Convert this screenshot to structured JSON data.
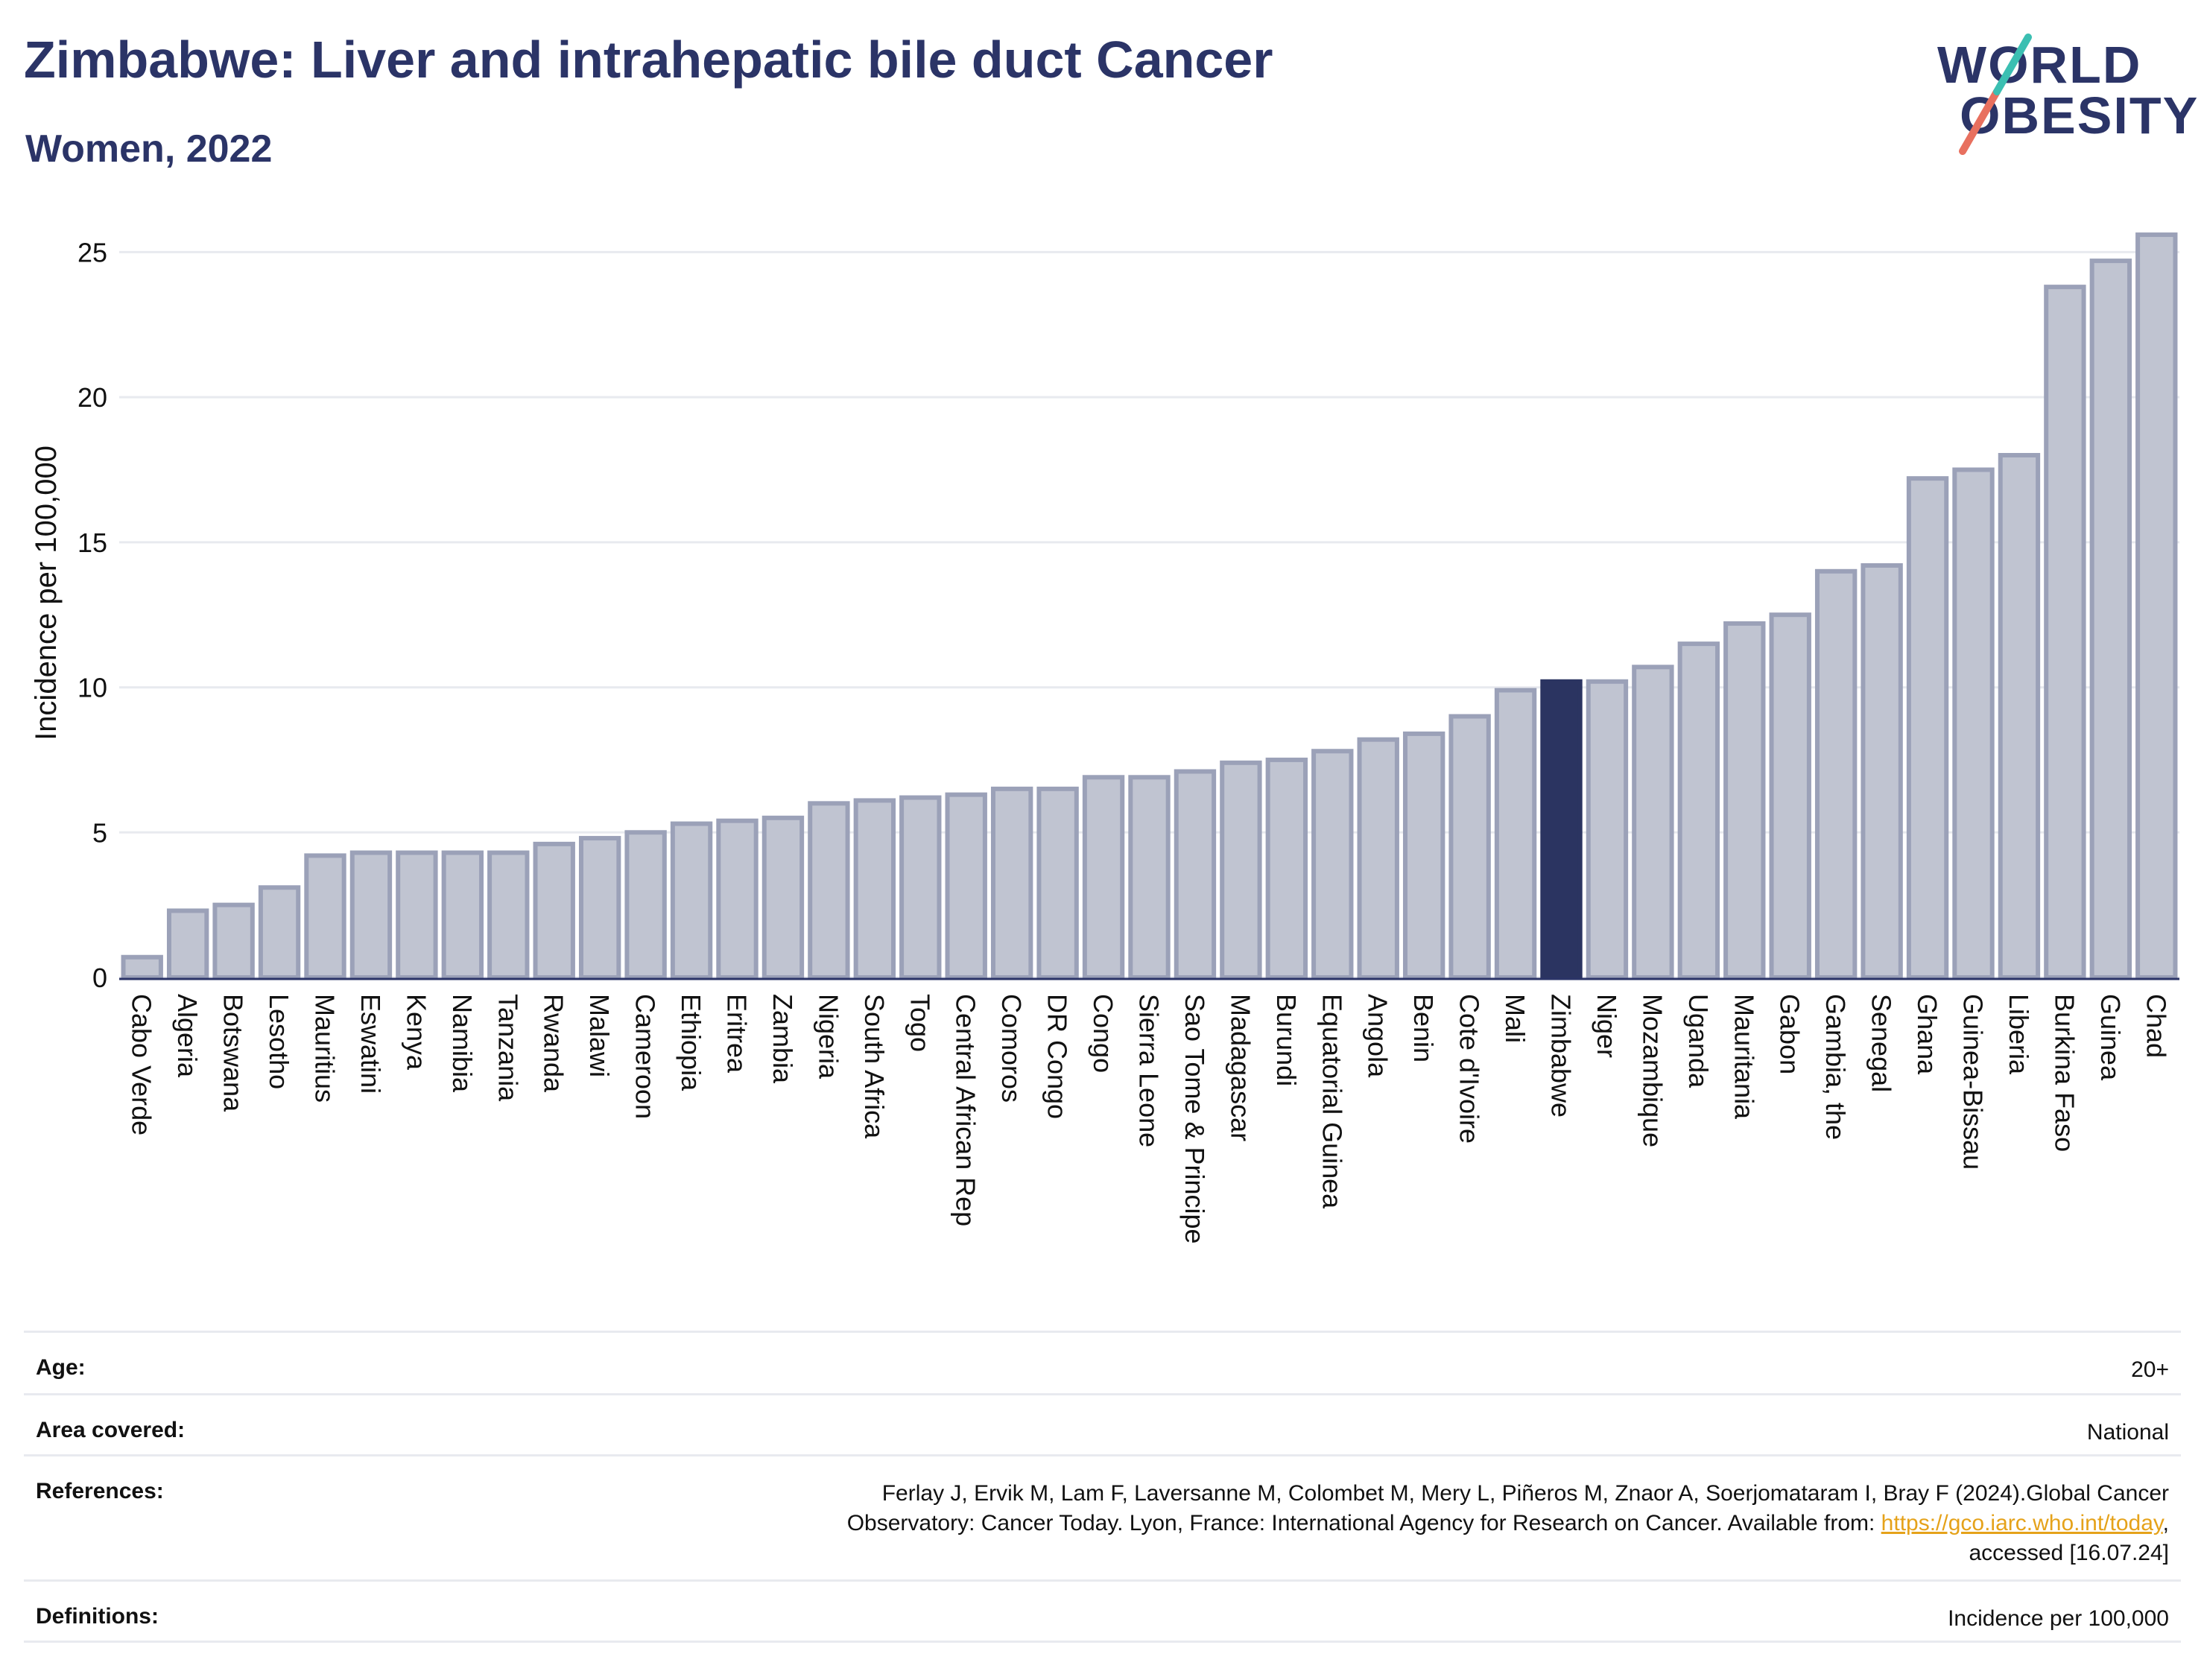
{
  "header": {
    "title": "Zimbabwe: Liver and intrahepatic bile duct Cancer",
    "subtitle": "Women, 2022",
    "logo_line1": "WORLD",
    "logo_line2": "OBESITY"
  },
  "chart_data": {
    "type": "bar",
    "title": "Zimbabwe: Liver and intrahepatic bile duct Cancer",
    "subtitle": "Women, 2022",
    "xlabel": "",
    "ylabel": "Incidence per 100,000",
    "ylim": [
      0,
      26.5
    ],
    "yticks": [
      0,
      5,
      10,
      15,
      20,
      25
    ],
    "grid": true,
    "highlight": "Zimbabwe",
    "colors": {
      "bar": "#c0c4d1",
      "bar_stroke": "#9ba1b8",
      "highlight": "#2b3461"
    },
    "categories": [
      "Cabo Verde",
      "Algeria",
      "Botswana",
      "Lesotho",
      "Mauritius",
      "Eswatini",
      "Kenya",
      "Namibia",
      "Tanzania",
      "Rwanda",
      "Malawi",
      "Cameroon",
      "Ethiopia",
      "Eritrea",
      "Zambia",
      "Nigeria",
      "South Africa",
      "Togo",
      "Central African Rep",
      "Comoros",
      "DR Congo",
      "Congo",
      "Sierra Leone",
      "Sao Tome & Principe",
      "Madagascar",
      "Burundi",
      "Equatorial Guinea",
      "Angola",
      "Benin",
      "Cote d'Ivoire",
      "Mali",
      "Zimbabwe",
      "Niger",
      "Mozambique",
      "Uganda",
      "Mauritania",
      "Gabon",
      "Gambia, the",
      "Senegal",
      "Ghana",
      "Guinea-Bissau",
      "Liberia",
      "Burkina Faso",
      "Guinea",
      "Chad"
    ],
    "values": [
      0.7,
      2.3,
      2.5,
      3.1,
      4.2,
      4.3,
      4.3,
      4.3,
      4.3,
      4.6,
      4.8,
      5.0,
      5.3,
      5.4,
      5.5,
      6.0,
      6.1,
      6.2,
      6.3,
      6.5,
      6.5,
      6.9,
      6.9,
      7.1,
      7.4,
      7.5,
      7.8,
      8.2,
      8.4,
      9.0,
      9.9,
      10.2,
      10.2,
      10.7,
      11.5,
      12.2,
      12.5,
      14.0,
      14.2,
      17.2,
      17.5,
      18.0,
      23.8,
      24.7,
      25.6
    ]
  },
  "meta": {
    "age_label": "Age:",
    "age_value": "20+",
    "area_label": "Area covered:",
    "area_value": "National",
    "references_label": "References:",
    "references_line1": "Ferlay J, Ervik M, Lam F, Laversanne M, Colombet M, Mery L, Piñeros M, Znaor A, Soerjomataram I, Bray F (2024).Global Cancer",
    "references_line2": "Observatory: Cancer Today. Lyon, France: International Agency for Research on Cancer. Available from: ",
    "references_link": "https://gco.iarc.who.int/today",
    "references_line2_end": ",",
    "references_line3": "accessed [16.07.24]",
    "definitions_label": "Definitions:",
    "definitions_value": "Incidence per 100,000"
  }
}
